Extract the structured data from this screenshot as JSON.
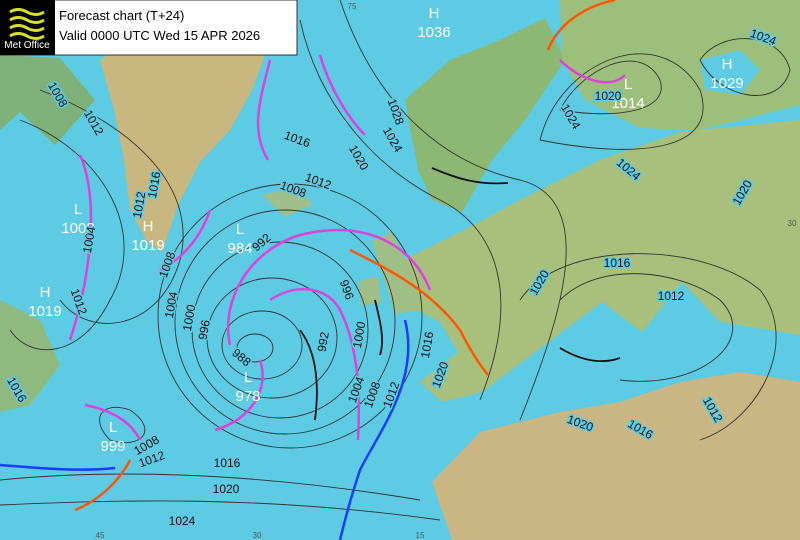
{
  "header": {
    "logo": "Met Office",
    "title": "Forecast chart (T+24)",
    "valid": "Valid 0000 UTC Wed 15 APR 2026"
  },
  "centers": [
    {
      "kind": "H",
      "value": 1036
    },
    {
      "kind": "L",
      "value": 1014
    },
    {
      "kind": "H",
      "value": 1029
    },
    {
      "kind": "L",
      "value": 1003
    },
    {
      "kind": "H",
      "value": 1019
    },
    {
      "kind": "L",
      "value": 984
    },
    {
      "kind": "H",
      "value": 1019
    },
    {
      "kind": "L",
      "value": 978
    },
    {
      "kind": "L",
      "value": 999
    }
  ],
  "isobar_labels": [
    1008,
    1012,
    1016,
    1012,
    1008,
    1004,
    1012,
    1004,
    1000,
    996,
    992,
    1008,
    1012,
    1016,
    1020,
    1024,
    1028,
    996,
    992,
    1000,
    1004,
    1008,
    1012,
    1016,
    1020,
    988,
    1020,
    1024,
    1024,
    1024,
    1020,
    1016,
    1012,
    1020,
    1016,
    1012,
    1020,
    1016,
    1020,
    1024,
    1008,
    1012,
    1016
  ],
  "grid_labels": [
    "75",
    "45",
    "30",
    "15",
    "30"
  ]
}
